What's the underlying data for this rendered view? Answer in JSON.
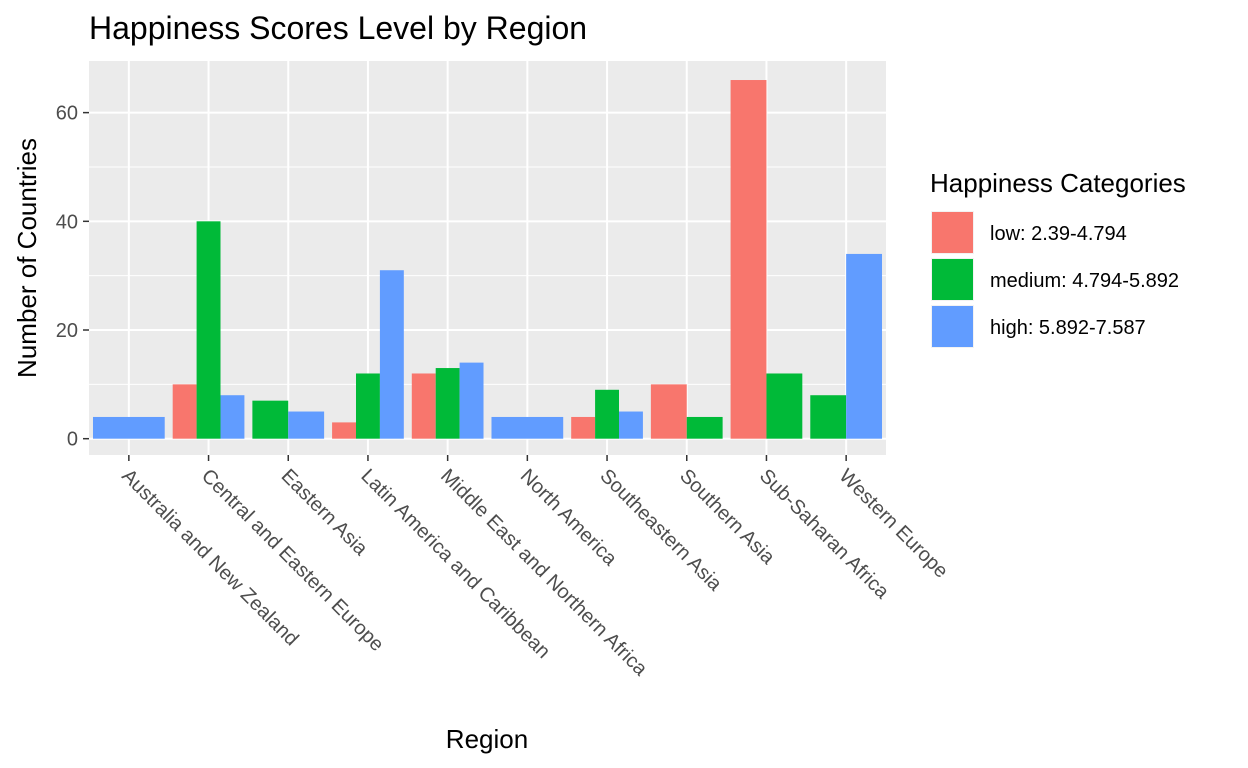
{
  "chart_data": {
    "type": "bar",
    "title": "Happiness Scores Level by Region",
    "xlabel": "Region",
    "ylabel": "Number of Countries",
    "ylim": [
      -3,
      69.5
    ],
    "yticks": [
      0,
      20,
      40,
      60
    ],
    "grid": true,
    "legend": {
      "title": "Happiness Categories",
      "position": "right"
    },
    "categories": [
      "Australia and New Zealand",
      "Central and Eastern Europe",
      "Eastern Asia",
      "Latin America and Caribbean",
      "Middle East and Northern Africa",
      "North America",
      "Southeastern Asia",
      "Southern Asia",
      "Sub-Saharan Africa",
      "Western Europe"
    ],
    "series": [
      {
        "name": "low: 2.39-4.794",
        "color": "#F8766D",
        "values": [
          null,
          10,
          null,
          3,
          12,
          null,
          4,
          10,
          66,
          null
        ]
      },
      {
        "name": "medium: 4.794-5.892",
        "color": "#00BA38",
        "values": [
          null,
          40,
          7,
          12,
          13,
          null,
          9,
          4,
          12,
          8
        ]
      },
      {
        "name": "high: 5.892-7.587",
        "color": "#619CFF",
        "values": [
          4,
          8,
          5,
          31,
          14,
          4,
          5,
          null,
          null,
          34
        ]
      }
    ]
  }
}
